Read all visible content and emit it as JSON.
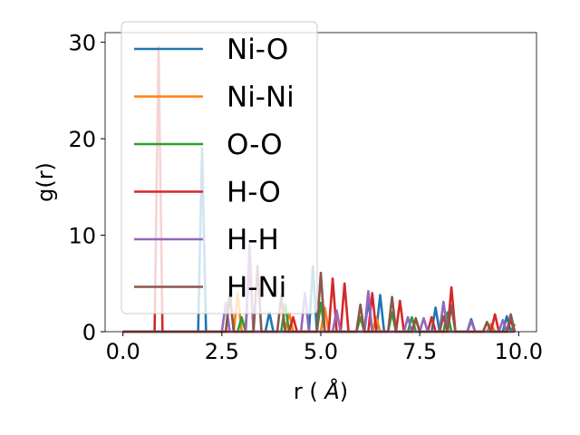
{
  "chart_data": {
    "type": "line",
    "xlabel": "r (",
    "xlabel_symbol": "Å",
    "xlabel_close": ")",
    "ylabel": "g(r)",
    "xlim": [
      -0.45,
      10.45
    ],
    "ylim": [
      0,
      31
    ],
    "xticks": [
      0.0,
      2.5,
      5.0,
      7.5,
      10.0
    ],
    "xtick_labels": [
      "0.0",
      "2.5",
      "5.0",
      "7.5",
      "10.0"
    ],
    "yticks": [
      0,
      10,
      20,
      30
    ],
    "ytick_labels": [
      "0",
      "10",
      "20",
      "30"
    ],
    "grid": false,
    "legend_position": "upper-left",
    "series": [
      {
        "name": "Ni-O",
        "color": "#1f77b4",
        "peaks": [
          [
            2.0,
            19.0
          ],
          [
            3.7,
            2.0
          ],
          [
            4.8,
            6.8
          ],
          [
            6.2,
            3.2
          ],
          [
            6.5,
            3.8
          ],
          [
            7.9,
            2.5
          ],
          [
            8.8,
            1.3
          ],
          [
            9.7,
            1.6
          ]
        ]
      },
      {
        "name": "Ni-Ni",
        "color": "#ff7f0e",
        "peaks": [
          [
            2.9,
            4.0
          ],
          [
            4.2,
            2.0
          ],
          [
            5.1,
            2.5
          ],
          [
            6.4,
            1.5
          ],
          [
            7.4,
            1.2
          ],
          [
            9.3,
            0.8
          ]
        ]
      },
      {
        "name": "O-O",
        "color": "#2ca02c",
        "peaks": [
          [
            2.7,
            4.2
          ],
          [
            3.0,
            1.5
          ],
          [
            4.1,
            2.8
          ],
          [
            5.0,
            3.0
          ],
          [
            6.0,
            1.5
          ],
          [
            6.8,
            2.0
          ],
          [
            7.3,
            1.5
          ],
          [
            8.2,
            2.0
          ],
          [
            9.2,
            1.0
          ],
          [
            9.9,
            0.8
          ]
        ]
      },
      {
        "name": "H-O",
        "color": "#d62728",
        "peaks": [
          [
            0.9,
            29.5
          ],
          [
            3.2,
            7.5
          ],
          [
            4.3,
            1.5
          ],
          [
            5.3,
            5.5
          ],
          [
            5.6,
            5.0
          ],
          [
            6.3,
            4.0
          ],
          [
            7.0,
            3.2
          ],
          [
            7.8,
            1.5
          ],
          [
            8.3,
            4.6
          ],
          [
            9.4,
            1.8
          ],
          [
            9.8,
            1.2
          ]
        ]
      },
      {
        "name": "H-H",
        "color": "#9467bd",
        "peaks": [
          [
            2.6,
            3.0
          ],
          [
            3.2,
            9.0
          ],
          [
            4.6,
            4.0
          ],
          [
            5.4,
            2.2
          ],
          [
            6.2,
            4.2
          ],
          [
            7.2,
            1.5
          ],
          [
            7.6,
            1.4
          ],
          [
            8.1,
            3.1
          ],
          [
            8.8,
            1.1
          ],
          [
            9.6,
            1.2
          ]
        ]
      },
      {
        "name": "H-Ni",
        "color": "#8c564b",
        "peaks": [
          [
            2.7,
            3.8
          ],
          [
            3.4,
            6.8
          ],
          [
            4.0,
            3.7
          ],
          [
            5.0,
            6.1
          ],
          [
            6.0,
            2.8
          ],
          [
            6.8,
            3.6
          ],
          [
            7.4,
            1.4
          ],
          [
            8.1,
            1.6
          ],
          [
            8.3,
            2.7
          ],
          [
            9.2,
            1.0
          ],
          [
            9.8,
            1.8
          ]
        ]
      }
    ]
  }
}
